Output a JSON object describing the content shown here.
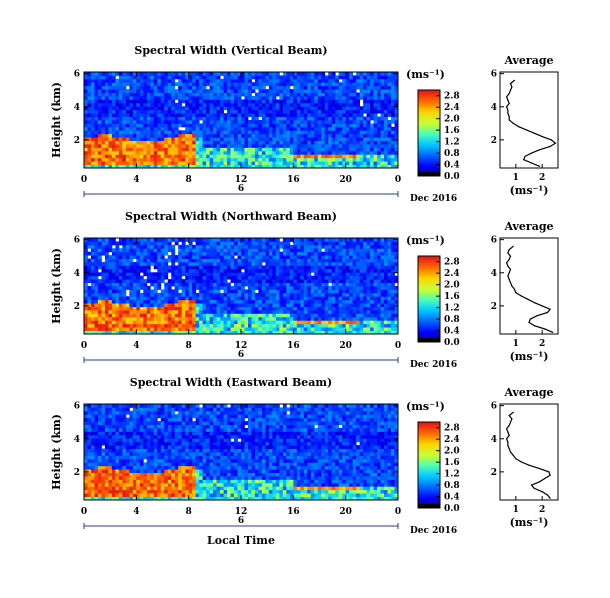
{
  "chart_data": [
    {
      "type": "heatmap",
      "title": "Spectral Width (Vertical Beam)",
      "ylabel": "Height (km)",
      "xlabel": "",
      "x_ticks": [
        "0",
        "4",
        "8",
        "12",
        "16",
        "20",
        "0"
      ],
      "y_ticks": [
        "2",
        "4",
        "6"
      ],
      "xlim": [
        0,
        24
      ],
      "ylim": [
        0.3,
        6.1
      ],
      "date_marker": "6",
      "date_label": "Dec 2016",
      "colorbar": {
        "unit": "(ms⁻¹)",
        "ticks": [
          "0.0",
          "0.4",
          "0.8",
          "1.2",
          "1.6",
          "2.0",
          "2.4",
          "2.8"
        ],
        "range": [
          0.0,
          3.0
        ]
      },
      "profile": {
        "title": "Average",
        "xlabel": "(ms⁻¹)",
        "x_ticks": [
          "1",
          "2"
        ],
        "y_ticks": [
          "2",
          "4",
          "6"
        ],
        "xlim": [
          0.4,
          2.6
        ],
        "ylim": [
          0.3,
          6.1
        ],
        "height": [
          0.4,
          0.6,
          0.8,
          1.0,
          1.2,
          1.4,
          1.6,
          1.8,
          2.0,
          2.2,
          2.4,
          2.6,
          2.8,
          3.0,
          3.2,
          3.4,
          3.6,
          3.8,
          4.0,
          4.2,
          4.4,
          4.6,
          4.8,
          5.0,
          5.2,
          5.4,
          5.6
        ],
        "width": [
          1.9,
          1.6,
          1.3,
          1.35,
          1.6,
          1.9,
          2.3,
          2.5,
          2.35,
          2.0,
          1.7,
          1.4,
          1.1,
          0.9,
          0.75,
          0.75,
          0.7,
          0.7,
          0.65,
          0.75,
          0.7,
          0.65,
          0.75,
          0.8,
          0.85,
          0.8,
          0.95
        ]
      }
    },
    {
      "type": "heatmap",
      "title": "Spectral Width (Northward Beam)",
      "ylabel": "Height (km)",
      "xlabel": "",
      "x_ticks": [
        "0",
        "4",
        "8",
        "12",
        "16",
        "20",
        "0"
      ],
      "y_ticks": [
        "2",
        "4",
        "6"
      ],
      "xlim": [
        0,
        24
      ],
      "ylim": [
        0.3,
        6.1
      ],
      "date_marker": "6",
      "date_label": "Dec 2016",
      "colorbar": {
        "unit": "(ms⁻¹)",
        "ticks": [
          "0.0",
          "0.4",
          "0.8",
          "1.2",
          "1.6",
          "2.0",
          "2.4",
          "2.8"
        ],
        "range": [
          0.0,
          3.0
        ]
      },
      "profile": {
        "title": "Average",
        "xlabel": "(ms⁻¹)",
        "x_ticks": [
          "1",
          "2"
        ],
        "y_ticks": [
          "2",
          "4",
          "6"
        ],
        "xlim": [
          0.4,
          2.6
        ],
        "ylim": [
          0.3,
          6.1
        ],
        "height": [
          0.4,
          0.6,
          0.8,
          1.0,
          1.2,
          1.4,
          1.6,
          1.8,
          2.0,
          2.2,
          2.4,
          2.6,
          2.8,
          3.0,
          3.2,
          3.4,
          3.6,
          3.8,
          4.0,
          4.2,
          4.4,
          4.6,
          4.8,
          5.0,
          5.2,
          5.4,
          5.6
        ],
        "width": [
          2.4,
          2.1,
          1.7,
          1.5,
          1.55,
          1.8,
          2.2,
          2.3,
          2.0,
          1.7,
          1.45,
          1.2,
          1.0,
          0.95,
          0.85,
          0.8,
          0.75,
          0.7,
          0.75,
          0.8,
          0.7,
          0.65,
          0.75,
          0.8,
          0.7,
          0.75,
          0.9
        ]
      }
    },
    {
      "type": "heatmap",
      "title": "Spectral Width (Eastward Beam)",
      "ylabel": "Height (km)",
      "xlabel": "Local Time",
      "x_ticks": [
        "0",
        "4",
        "8",
        "12",
        "16",
        "20",
        "0"
      ],
      "y_ticks": [
        "2",
        "4",
        "6"
      ],
      "xlim": [
        0,
        24
      ],
      "ylim": [
        0.3,
        6.1
      ],
      "date_marker": "6",
      "date_label": "Dec 2016",
      "colorbar": {
        "unit": "(ms⁻¹)",
        "ticks": [
          "0.0",
          "0.4",
          "0.8",
          "1.2",
          "1.6",
          "2.0",
          "2.4",
          "2.8"
        ],
        "range": [
          0.0,
          3.0
        ]
      },
      "profile": {
        "title": "Average",
        "xlabel": "(ms⁻¹)",
        "x_ticks": [
          "1",
          "2"
        ],
        "y_ticks": [
          "2",
          "4",
          "6"
        ],
        "xlim": [
          0.4,
          2.6
        ],
        "ylim": [
          0.3,
          6.1
        ],
        "height": [
          0.4,
          0.6,
          0.8,
          1.0,
          1.2,
          1.4,
          1.6,
          1.8,
          2.0,
          2.2,
          2.4,
          2.6,
          2.8,
          3.0,
          3.2,
          3.4,
          3.6,
          3.8,
          4.0,
          4.2,
          4.4,
          4.6,
          4.8,
          5.0,
          5.2,
          5.4,
          5.6
        ],
        "width": [
          2.3,
          2.2,
          2.0,
          1.7,
          1.6,
          1.9,
          2.1,
          2.3,
          2.25,
          1.9,
          1.5,
          1.2,
          1.0,
          0.9,
          0.8,
          0.75,
          0.7,
          0.7,
          0.65,
          0.75,
          0.7,
          0.65,
          0.75,
          0.8,
          0.85,
          0.75,
          0.9
        ]
      }
    }
  ]
}
